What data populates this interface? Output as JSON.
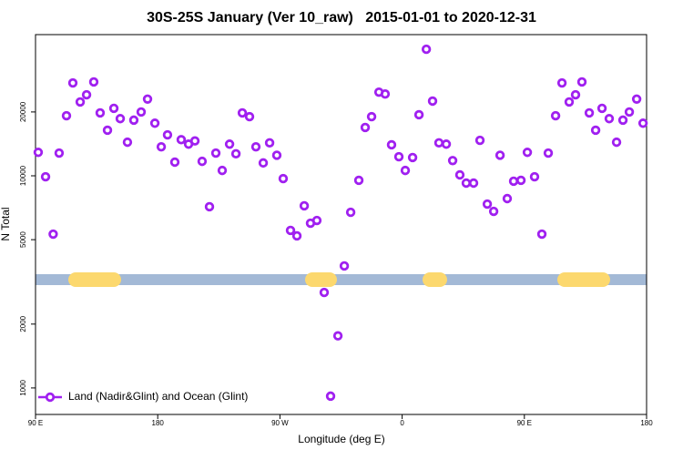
{
  "chart_data": {
    "type": "scatter",
    "title": "30S-25S January (Ver 10_raw)   2015-01-01 to 2020-12-31",
    "x_label": "Longitude (deg E)",
    "y_label": "N Total",
    "x": [
      92,
      97.4,
      103,
      107.4,
      112.8,
      117.5,
      122.9,
      127.6,
      132.9,
      137.6,
      143,
      147.7,
      152.4,
      157.7,
      162.4,
      167.8,
      172.5,
      177.9,
      182.6,
      187.2,
      192.6,
      197.3,
      202.7,
      207.4,
      212.7,
      218.1,
      222.8,
      227.5,
      232.9,
      237.6,
      242.3,
      247.6,
      252.3,
      257.7,
      262.4,
      267.7,
      272.4,
      277.8,
      282.5,
      287.9,
      292.5,
      297.2,
      302.6,
      307.3,
      312.7,
      317.4,
      322.1,
      328.1,
      332.8,
      337.5,
      342.9,
      347.5,
      352.2,
      357.6,
      362.3,
      367.7,
      372.4,
      377.8,
      382.4,
      387.1,
      392.5,
      397.2,
      402.5,
      407.2,
      412.6,
      417.3,
      422.7,
      427.4,
      432.1,
      437.4,
      442.1,
      447.5,
      452.2,
      457.5,
      462.9,
      467.6,
      473,
      477.7,
      483,
      487.7,
      492.4,
      497.8,
      502.5,
      507.2,
      512.5,
      517.9,
      522.6,
      527.3,
      532.7,
      537.4
    ],
    "series": [
      {
        "name": "Land (Nadir&Glint) and Ocean (Glint)",
        "color": "#a020f0",
        "values": [
          12900,
          9900,
          5310,
          12800,
          19200,
          27400,
          22300,
          24100,
          27700,
          19800,
          16400,
          20800,
          18600,
          14400,
          18300,
          20000,
          23000,
          17700,
          13700,
          15600,
          11600,
          14800,
          14100,
          14600,
          11700,
          7150,
          12800,
          10600,
          14100,
          12700,
          19800,
          19000,
          13700,
          11500,
          14300,
          12500,
          9700,
          5530,
          5210,
          7220,
          5980,
          6160,
          2820,
          915,
          1760,
          3760,
          6730,
          9520,
          16900,
          19000,
          24800,
          24300,
          14000,
          12300,
          10600,
          12200,
          19400,
          39500,
          22500,
          14300,
          14100,
          11800,
          10100,
          9240,
          9240,
          14700,
          7360,
          6800,
          12500,
          7810,
          9430,
          9520,
          12900,
          9900,
          5310,
          12800,
          19200,
          27400,
          22300,
          24100,
          27700,
          19800,
          16400,
          20800,
          18600,
          14400,
          18300,
          20000,
          23000,
          17700
        ]
      }
    ],
    "xlim": [
      90,
      540
    ],
    "xticks": [
      {
        "value": 90,
        "label": "90 E"
      },
      {
        "value": 180,
        "label": "180"
      },
      {
        "value": 270,
        "label": "90 W"
      },
      {
        "value": 360,
        "label": "0"
      },
      {
        "value": 450,
        "label": "90 E"
      },
      {
        "value": 540,
        "label": "180"
      }
    ],
    "ylim": [
      750,
      46300
    ],
    "y_scale": "log",
    "yticks": [
      1000,
      2000,
      5000,
      10000,
      20000
    ],
    "legend": "bottom-left"
  }
}
